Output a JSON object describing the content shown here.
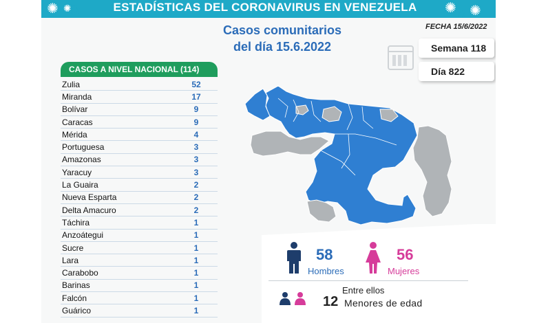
{
  "header": {
    "title": "ESTADÍSTICAS DEL CORONAVIRUS EN VENEZUELA"
  },
  "subtitle": {
    "line1": "Casos comunitarios",
    "line2": "del día 15.6.2022"
  },
  "fecha": "FECHA 15/6/2022",
  "stats": {
    "semana": "Semana 118",
    "dia": "Día 822"
  },
  "table": {
    "title": "CASOS A NIVEL NACIONAL (114)",
    "rows": [
      {
        "name": "Zulia",
        "value": "52"
      },
      {
        "name": "Miranda",
        "value": "17"
      },
      {
        "name": "Bolívar",
        "value": "9"
      },
      {
        "name": "Caracas",
        "value": "9"
      },
      {
        "name": "Mérida",
        "value": "4"
      },
      {
        "name": "Portuguesa",
        "value": "3"
      },
      {
        "name": "Amazonas",
        "value": "3"
      },
      {
        "name": "Yaracuy",
        "value": "3"
      },
      {
        "name": "La Guaira",
        "value": "2"
      },
      {
        "name": "Nueva Esparta",
        "value": "2"
      },
      {
        "name": "Delta Amacuro",
        "value": "2"
      },
      {
        "name": "Táchira",
        "value": "1"
      },
      {
        "name": "Anzoátegui",
        "value": "1"
      },
      {
        "name": "Sucre",
        "value": "1"
      },
      {
        "name": "Lara",
        "value": "1"
      },
      {
        "name": "Carabobo",
        "value": "1"
      },
      {
        "name": "Barinas",
        "value": "1"
      },
      {
        "name": "Falcón",
        "value": "1"
      },
      {
        "name": "Guárico",
        "value": "1"
      }
    ]
  },
  "gender": {
    "hombres_count": "58",
    "hombres_label": "Hombres",
    "mujeres_count": "56",
    "mujeres_label": "Mujeres"
  },
  "minors": {
    "intro": "Entre ellos",
    "count": "12",
    "label": "Menores de edad"
  },
  "colors": {
    "banner": "#1ea9c7",
    "table_header": "#1f9d5d",
    "map_blue": "#2f7fd2",
    "map_gray": "#b0b4b7",
    "men": "#1e3d6b",
    "women": "#d63c9a",
    "subtitle": "#2b6cb8"
  },
  "icons": [
    "virus-icon",
    "calendar-icon",
    "man-icon",
    "woman-icon",
    "children-icon"
  ]
}
